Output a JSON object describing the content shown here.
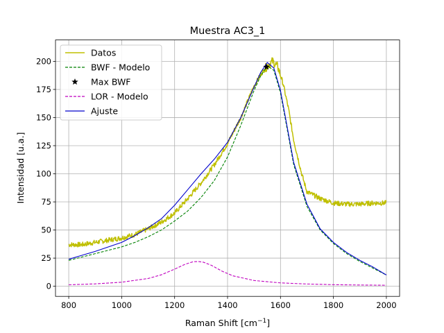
{
  "chart_data": {
    "type": "line",
    "title": "Muestra AC3_1",
    "xlabel": "Raman Shift [cm",
    "xlabel_sup": "−1",
    "xlabel_end": "]",
    "ylabel": "Intensidad [u.a.]",
    "xlim": [
      750,
      2050
    ],
    "ylim": [
      -9,
      219
    ],
    "xticks": [
      800,
      1000,
      1200,
      1400,
      1600,
      1800,
      2000
    ],
    "yticks": [
      0,
      25,
      50,
      75,
      100,
      125,
      150,
      175,
      200
    ],
    "grid": true,
    "legend_position": "top-left",
    "series": [
      {
        "name": "Datos",
        "style": "solid",
        "color": "#bfbf00",
        "x": [
          800,
          850,
          900,
          950,
          1000,
          1050,
          1100,
          1150,
          1200,
          1250,
          1300,
          1350,
          1400,
          1450,
          1500,
          1530,
          1550,
          1570,
          1590,
          1610,
          1630,
          1650,
          1680,
          1700,
          1750,
          1800,
          1850,
          1900,
          1950,
          2000
        ],
        "y": [
          37,
          37,
          39,
          41,
          43,
          46,
          51,
          57,
          65,
          78,
          92,
          108,
          127,
          150,
          178,
          190,
          196,
          200,
          195,
          180,
          158,
          130,
          100,
          84,
          78,
          74,
          73,
          73,
          74,
          74
        ]
      },
      {
        "name": "BWF - Modelo",
        "style": "dashed",
        "color": "#008000",
        "x": [
          800,
          850,
          900,
          950,
          1000,
          1050,
          1100,
          1150,
          1200,
          1250,
          1300,
          1350,
          1400,
          1450,
          1500,
          1525,
          1550,
          1575,
          1600,
          1625,
          1650,
          1700,
          1750,
          1800,
          1850,
          1900,
          1950,
          2000
        ],
        "y": [
          23,
          26,
          29,
          32,
          35,
          39,
          44,
          50,
          58,
          67,
          79,
          94,
          115,
          143,
          174,
          187,
          196,
          192,
          172,
          140,
          108,
          71,
          50,
          38,
          29,
          22,
          16,
          10
        ]
      },
      {
        "name": "Max BWF",
        "style": "marker",
        "color": "#000000",
        "x": [
          1547
        ],
        "y": [
          195
        ]
      },
      {
        "name": "LOR - Modelo",
        "style": "dashed",
        "color": "#bf00bf",
        "x": [
          800,
          900,
          1000,
          1100,
          1150,
          1200,
          1240,
          1270,
          1290,
          1310,
          1340,
          1380,
          1420,
          1500,
          1600,
          1700,
          1800,
          1900,
          2000
        ],
        "y": [
          1.3,
          2.1,
          3.6,
          6.9,
          10.2,
          15.2,
          19.6,
          21.8,
          22,
          21.3,
          18.5,
          13.3,
          9.3,
          5.1,
          3,
          2,
          1.4,
          1.1,
          0.9
        ]
      },
      {
        "name": "Ajuste",
        "style": "solid",
        "color": "#0000cc",
        "x": [
          800,
          850,
          900,
          950,
          1000,
          1050,
          1100,
          1150,
          1200,
          1250,
          1300,
          1350,
          1400,
          1450,
          1500,
          1525,
          1550,
          1575,
          1600,
          1625,
          1650,
          1700,
          1750,
          1800,
          1850,
          1900,
          1950,
          2000
        ],
        "y": [
          24,
          27.5,
          31,
          35,
          39,
          45,
          52,
          60,
          72,
          86,
          100,
          113,
          128,
          150,
          177,
          190,
          199,
          194,
          174,
          142,
          110,
          73,
          51,
          39,
          30,
          23,
          17,
          10
        ]
      }
    ]
  }
}
